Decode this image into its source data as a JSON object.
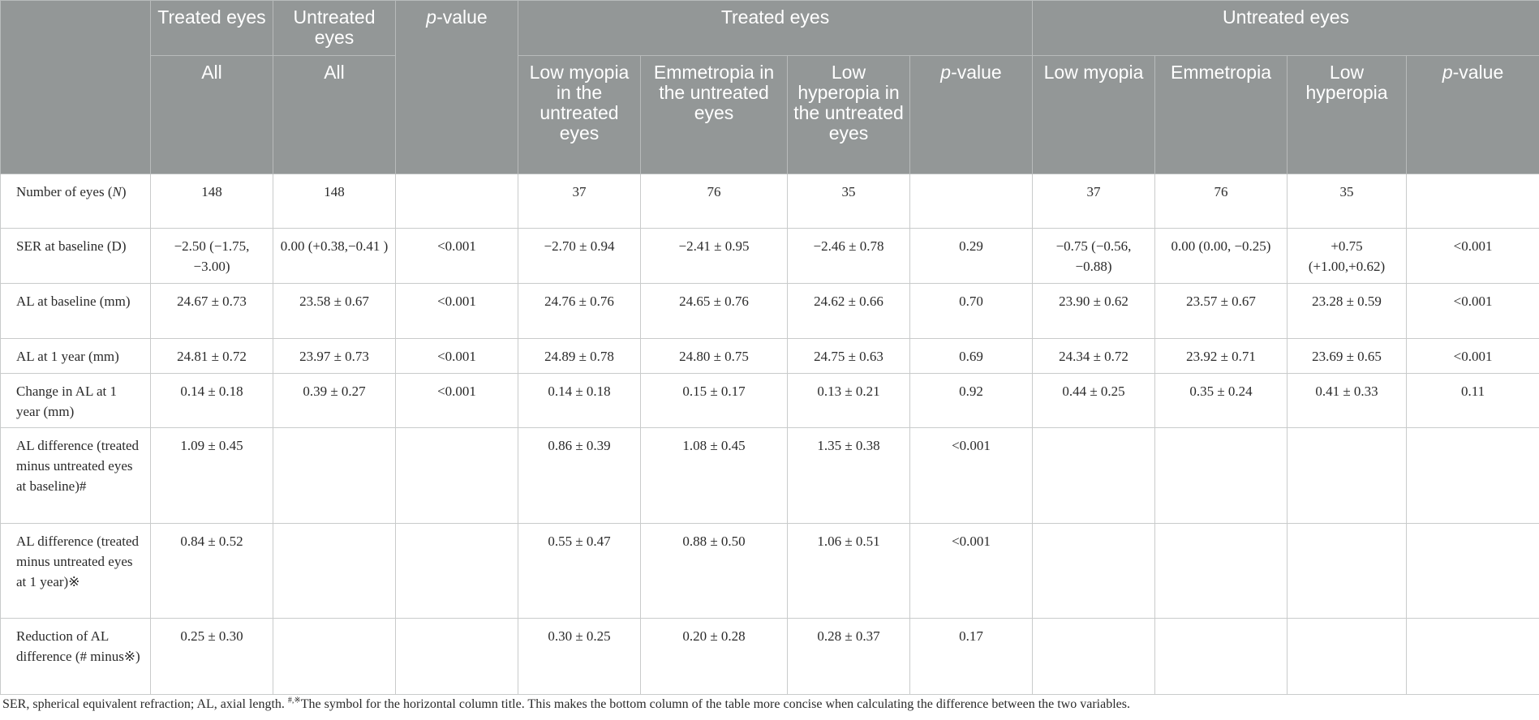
{
  "header": {
    "treated_eyes": "Treated eyes",
    "untreated_eyes": "Untreated eyes",
    "p_value_italic": "p",
    "p_value_rest": "-value",
    "all": "All",
    "treated_group_title": "Treated eyes",
    "untreated_group_title": "Untreated eyes",
    "treated_sub": [
      "Low myopia in the untreated eyes",
      "Emmetropia in the untreated eyes",
      "Low hyperopia in the untreated eyes"
    ],
    "untreated_sub": [
      "Low myopia",
      "Emmetropia",
      "Low hyperopia"
    ]
  },
  "rows": [
    {
      "label": "Number of eyes (",
      "label_italic": "N",
      "label_tail": ")",
      "cells": [
        "148",
        "148",
        "",
        "37",
        "76",
        "35",
        "",
        "37",
        "76",
        "35",
        ""
      ]
    },
    {
      "label": "SER at baseline (D)",
      "cells": [
        "−2.50 (−1.75, −3.00)",
        "0.00 (+0.38,−0.41 )",
        "<0.001",
        "−2.70 ± 0.94",
        "−2.41 ± 0.95",
        "−2.46 ± 0.78",
        "0.29",
        "−0.75 (−0.56, −0.88)",
        "0.00 (0.00, −0.25)",
        "+0.75 (+1.00,+0.62)",
        "<0.001"
      ]
    },
    {
      "label": "AL at baseline (mm)",
      "cells": [
        "24.67 ± 0.73",
        "23.58 ± 0.67",
        "<0.001",
        "24.76 ± 0.76",
        "24.65 ± 0.76",
        "24.62 ± 0.66",
        "0.70",
        "23.90 ± 0.62",
        "23.57 ± 0.67",
        "23.28 ± 0.59",
        "<0.001"
      ]
    },
    {
      "label": "AL at 1 year (mm)",
      "cells": [
        "24.81 ± 0.72",
        "23.97 ± 0.73",
        "<0.001",
        "24.89 ± 0.78",
        "24.80 ± 0.75",
        "24.75 ± 0.63",
        "0.69",
        "24.34 ± 0.72",
        "23.92 ± 0.71",
        "23.69 ± 0.65",
        "<0.001"
      ]
    },
    {
      "label": "Change in AL at 1 year (mm)",
      "cells": [
        "0.14 ± 0.18",
        "0.39 ± 0.27",
        "<0.001",
        "0.14 ± 0.18",
        "0.15 ± 0.17",
        "0.13 ± 0.21",
        "0.92",
        "0.44 ± 0.25",
        "0.35 ± 0.24",
        "0.41 ± 0.33",
        "0.11"
      ]
    },
    {
      "label": "AL difference (treated minus untreated eyes at baseline)#",
      "cells": [
        "1.09 ± 0.45",
        "",
        "",
        "0.86 ± 0.39",
        "1.08 ± 0.45",
        "1.35 ± 0.38",
        "<0.001",
        "",
        "",
        "",
        ""
      ]
    },
    {
      "label": "AL difference (treated minus untreated eyes at 1 year)※",
      "cells": [
        "0.84 ± 0.52",
        "",
        "",
        "0.55 ± 0.47",
        "0.88 ± 0.50",
        "1.06 ± 0.51",
        "<0.001",
        "",
        "",
        "",
        ""
      ]
    },
    {
      "label": "Reduction of AL difference (# minus※)",
      "cells": [
        "0.25 ± 0.30",
        "",
        "",
        "0.30 ± 0.25",
        "0.20 ± 0.28",
        "0.28 ± 0.37",
        "0.17",
        "",
        "",
        "",
        ""
      ]
    }
  ],
  "footnote": {
    "part1": "SER, spherical equivalent refraction; AL, axial length. ",
    "sup": "#,※",
    "part2": "The symbol for the horizontal column title. This makes the bottom column of the table more concise when calculating the difference between the two variables."
  }
}
